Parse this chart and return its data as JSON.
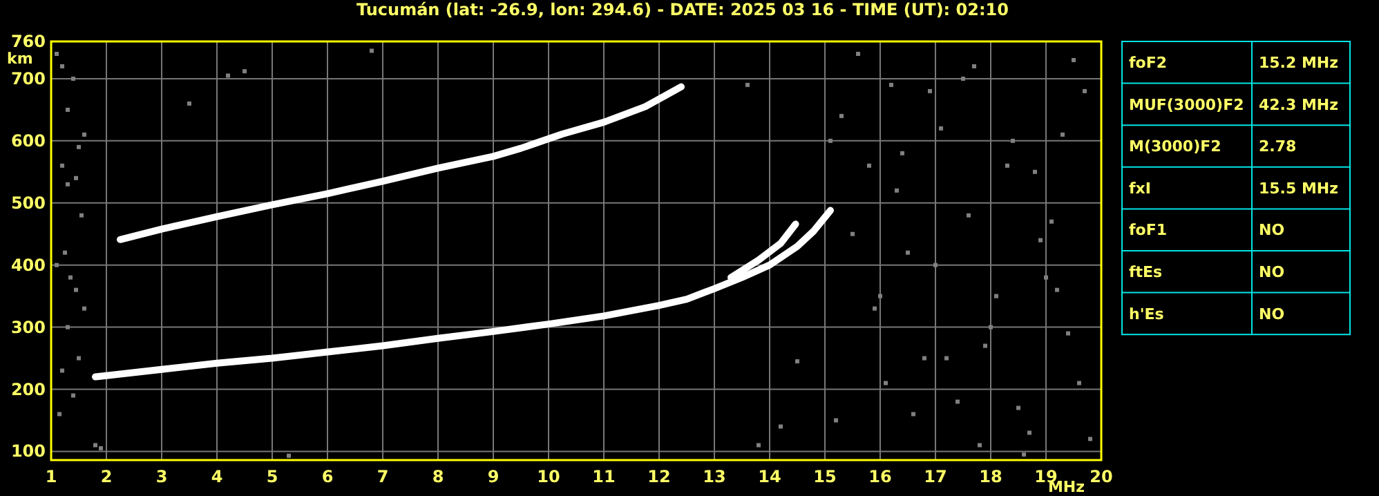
{
  "chart_data": [
    {
      "type": "line",
      "title": "Tucumán (lat: -26.9, lon: 294.6) - DATE: 2025 03 16 - TIME (UT): 02:10",
      "xlabel": "MHz",
      "ylabel": "km",
      "xlim": [
        1,
        20
      ],
      "ylim": [
        86,
        760
      ],
      "xticks": [
        1,
        2,
        3,
        4,
        5,
        6,
        7,
        8,
        9,
        10,
        11,
        12,
        13,
        14,
        15,
        16,
        17,
        18,
        19,
        20
      ],
      "yticks": [
        100,
        200,
        300,
        400,
        500,
        600,
        700,
        760
      ],
      "grid": true,
      "line_style": "solid",
      "marker": "none",
      "series": [
        {
          "color": "#ffffff",
          "x": [
            1.8,
            2,
            3,
            4,
            5,
            6,
            7,
            8,
            9,
            10,
            11,
            12,
            12.5,
            13,
            13.5,
            14,
            14.5,
            14.8,
            15.1
          ],
          "values": [
            220,
            222,
            232,
            242,
            250,
            260,
            270,
            282,
            293,
            305,
            318,
            335,
            345,
            362,
            380,
            400,
            430,
            455,
            488
          ]
        },
        {
          "color": "#ffffff",
          "x": [
            13.3,
            13.8,
            14.2,
            14.47
          ],
          "values": [
            380,
            408,
            435,
            466
          ]
        },
        {
          "color": "#ffffff",
          "x": [
            2.25,
            3,
            4,
            5,
            6,
            7,
            8,
            9,
            9.5,
            10.25,
            11,
            11.75,
            12.4
          ],
          "values": [
            441,
            458,
            478,
            497,
            515,
            535,
            556,
            575,
            588,
            611,
            630,
            655,
            687
          ]
        },
        {
          "type": "scatter",
          "color": "#808080",
          "marker": "square",
          "x": [
            1.1,
            1.2,
            1.3,
            1.4,
            1.5,
            1.6,
            1.2,
            1.3,
            1.45,
            1.55,
            1.1,
            1.35,
            1.45,
            1.25,
            1.5,
            1.2,
            1.4,
            1.3,
            1.15,
            1.6,
            1.8,
            1.9,
            5.3,
            3.5,
            4.2,
            4.5,
            6.8,
            13.8,
            14.5,
            15.2,
            15.6,
            15.8,
            16.2,
            16.5,
            16.8,
            17.1,
            17.4,
            17.7,
            18.1,
            18.4,
            18.7,
            19.1,
            19.4,
            19.7,
            15.3,
            15.9,
            16.3,
            16.6,
            17.0,
            17.5,
            17.9,
            18.3,
            18.6,
            19.0,
            19.3,
            19.6,
            15.5,
            16.0,
            16.4,
            17.2,
            17.6,
            18.0,
            18.5,
            18.9,
            19.5,
            19.8,
            15.1,
            16.1,
            16.9,
            17.8,
            18.8,
            19.2,
            14.2,
            13.6
          ],
          "values": [
            740,
            720,
            650,
            700,
            590,
            610,
            560,
            530,
            540,
            480,
            400,
            380,
            360,
            420,
            250,
            230,
            190,
            300,
            160,
            330,
            110,
            105,
            93,
            660,
            705,
            712,
            745,
            110,
            245,
            150,
            740,
            560,
            690,
            420,
            250,
            620,
            180,
            720,
            350,
            600,
            130,
            470,
            290,
            680,
            640,
            330,
            520,
            160,
            400,
            700,
            270,
            560,
            95,
            380,
            610,
            210,
            450,
            350,
            580,
            250,
            480,
            300,
            170,
            440,
            730,
            120,
            600,
            210,
            680,
            110,
            550,
            360,
            140,
            690
          ]
        }
      ]
    },
    {
      "type": "other",
      "annotations": [
        "foF2",
        "15.2 MHz",
        "MUF(3000)F2",
        "42.3 MHz",
        "M(3000)F2",
        "2.78",
        "fxI",
        "15.5 MHz",
        "foF1",
        "NO",
        "ftEs",
        "NO",
        "h'Es",
        "NO"
      ]
    }
  ]
}
